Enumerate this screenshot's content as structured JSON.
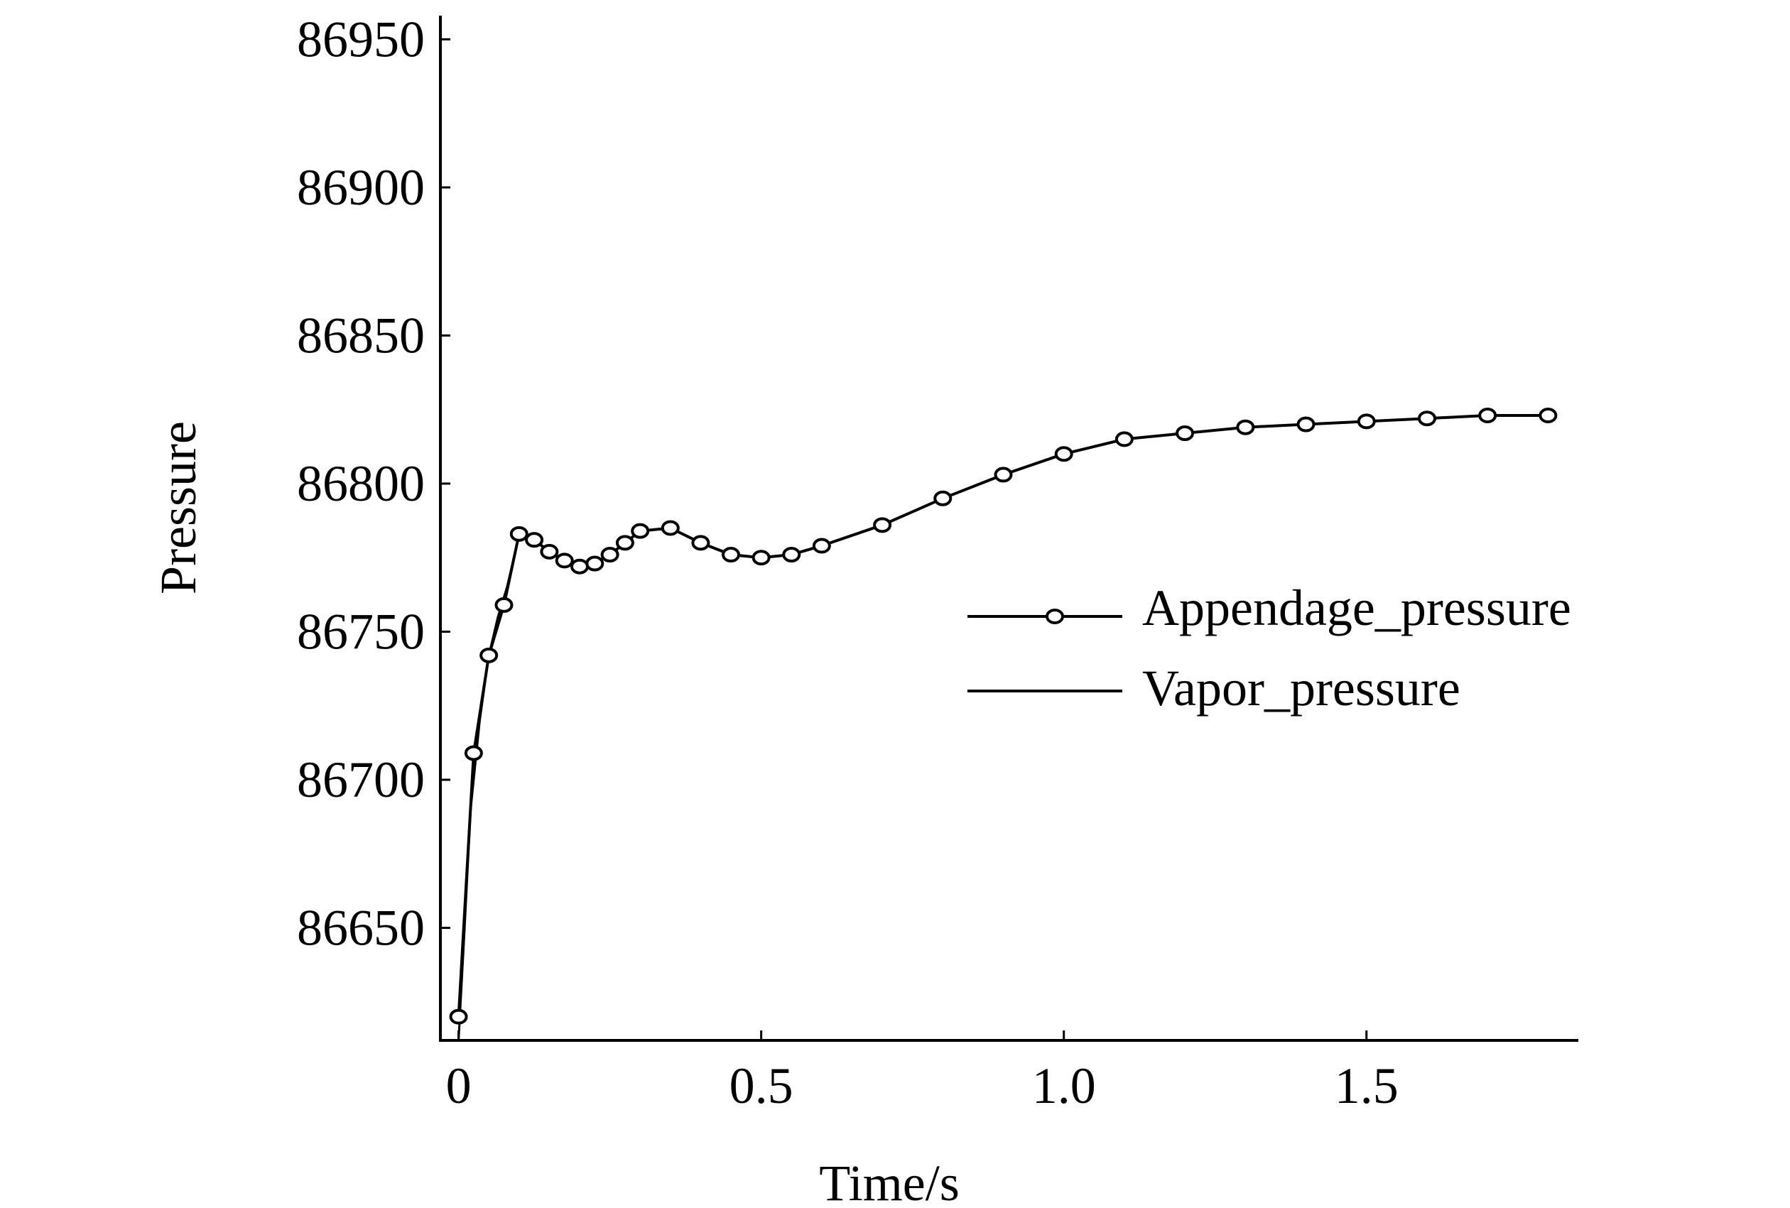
{
  "chart_data": {
    "type": "line",
    "xlabel": "Time/s",
    "ylabel": "Pressure",
    "xlim": [
      -0.03,
      1.85
    ],
    "ylim": [
      86612,
      86958
    ],
    "x_ticks": [
      0,
      0.5,
      1.0,
      1.5
    ],
    "x_tick_labels": [
      "0",
      "0.5",
      "1.0",
      "1.5"
    ],
    "y_ticks": [
      86650,
      86700,
      86750,
      86800,
      86850,
      86900,
      86950
    ],
    "y_tick_labels": [
      "86650",
      "86700",
      "86750",
      "86800",
      "86850",
      "86900",
      "86950"
    ],
    "grid": false,
    "legend_position": "center-right",
    "series": [
      {
        "name": "Appendage_pressure",
        "marker": "circle",
        "color": "#000000",
        "x": [
          0,
          0.025,
          0.05,
          0.075,
          0.1,
          0.125,
          0.15,
          0.175,
          0.2,
          0.225,
          0.25,
          0.275,
          0.3,
          0.35,
          0.4,
          0.45,
          0.5,
          0.55,
          0.6,
          0.7,
          0.8,
          0.9,
          1.0,
          1.1,
          1.2,
          1.3,
          1.4,
          1.5,
          1.6,
          1.7,
          1.8
        ],
        "y": [
          86620,
          86709,
          86742,
          86759,
          86783,
          86781,
          86777,
          86774,
          86772,
          86773,
          86776,
          86780,
          86784,
          86785,
          86780,
          86776,
          86775,
          86776,
          86779,
          86786,
          86795,
          86803,
          86810,
          86815,
          86817,
          86819,
          86820,
          86821,
          86822,
          86823,
          86823
        ]
      },
      {
        "name": "Vapor_pressure",
        "marker": "none",
        "color": "#000000",
        "x": [
          0,
          0.01,
          0.02,
          0.035,
          0.05,
          0.065,
          0.08,
          0.095,
          0.1,
          0.125,
          0.15,
          0.175,
          0.2,
          0.225,
          0.25,
          0.275,
          0.3,
          0.35,
          0.4,
          0.45,
          0.5,
          0.55,
          0.6,
          0.7,
          0.8,
          0.9,
          1.0,
          1.1,
          1.2,
          1.3,
          1.4,
          1.5,
          1.6,
          1.7,
          1.8
        ],
        "y": [
          86612,
          86650,
          86690,
          86720,
          86742,
          86755,
          86765,
          86778,
          86783,
          86781,
          86777,
          86774,
          86772,
          86773,
          86776,
          86780,
          86784,
          86785,
          86780,
          86776,
          86775,
          86776,
          86779,
          86786,
          86795,
          86803,
          86810,
          86815,
          86817,
          86819,
          86820,
          86821,
          86822,
          86823,
          86823
        ]
      }
    ]
  }
}
